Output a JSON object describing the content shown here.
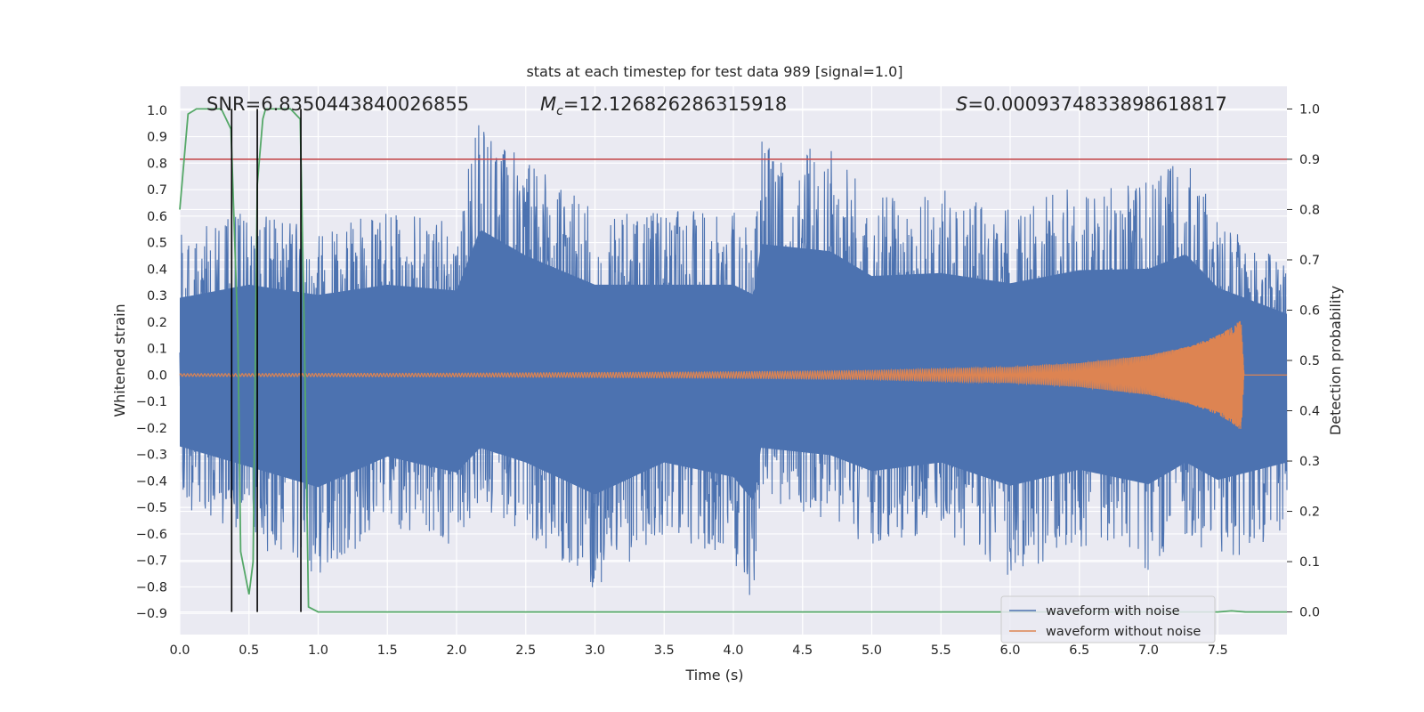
{
  "chart_data": {
    "type": "line",
    "title": "stats at each timestep for test data 989 [signal=1.0]",
    "xlabel": "Time (s)",
    "ylabel": "Whitened strain",
    "y2label": "Detection probability",
    "xlim": [
      0.0,
      8.0
    ],
    "ylim": [
      -0.98,
      1.09
    ],
    "y2lim": [
      -0.045,
      1.045
    ],
    "xticks": [
      "0.0",
      "0.5",
      "1.0",
      "1.5",
      "2.0",
      "2.5",
      "3.0",
      "3.5",
      "4.0",
      "4.5",
      "5.0",
      "5.5",
      "6.0",
      "6.5",
      "7.0",
      "7.5"
    ],
    "yticks": [
      "1.0",
      "0.9",
      "0.8",
      "0.7",
      "0.6",
      "0.5",
      "0.4",
      "0.3",
      "0.2",
      "0.1",
      "0.0",
      "−0.1",
      "−0.2",
      "−0.3",
      "−0.4",
      "−0.5",
      "−0.6",
      "−0.7",
      "−0.8",
      "−0.9"
    ],
    "y2ticks": [
      "1.0",
      "0.9",
      "0.8",
      "0.7",
      "0.6",
      "0.5",
      "0.4",
      "0.3",
      "0.2",
      "0.1",
      "0.0"
    ],
    "grid": true,
    "legend_position": "lower-right",
    "annotations": {
      "snr_label": "SNR=6.8350443840026855",
      "mc_prefix": "M",
      "mc_sub": "c",
      "mc_value": "=12.126826286315918",
      "s_prefix": "S",
      "s_value": "=0.0009374833898618817"
    },
    "threshold_y2": 0.9,
    "vertical_markers_x": [
      0.375,
      0.56,
      0.875
    ],
    "series": [
      {
        "name": "waveform with noise",
        "color": "#4c72b0",
        "style": "noise",
        "envelope_sample": [
          [
            0.0,
            0.53,
            -0.49
          ],
          [
            0.5,
            0.62,
            -0.63
          ],
          [
            1.0,
            0.55,
            -0.77
          ],
          [
            1.5,
            0.62,
            -0.56
          ],
          [
            2.0,
            0.58,
            -0.67
          ],
          [
            2.17,
            1.0,
            -0.5
          ],
          [
            2.5,
            0.82,
            -0.6
          ],
          [
            3.0,
            0.62,
            -0.82
          ],
          [
            3.5,
            0.62,
            -0.6
          ],
          [
            4.0,
            0.62,
            -0.7
          ],
          [
            4.15,
            0.55,
            -0.87
          ],
          [
            4.2,
            0.9,
            -0.5
          ],
          [
            4.7,
            0.85,
            -0.55
          ],
          [
            5.0,
            0.68,
            -0.66
          ],
          [
            5.5,
            0.7,
            -0.6
          ],
          [
            6.0,
            0.63,
            -0.76
          ],
          [
            6.5,
            0.72,
            -0.65
          ],
          [
            7.0,
            0.73,
            -0.75
          ],
          [
            7.27,
            0.83,
            -0.6
          ],
          [
            7.5,
            0.6,
            -0.72
          ],
          [
            8.0,
            0.42,
            -0.6
          ]
        ]
      },
      {
        "name": "waveform without noise",
        "color": "#dd8452",
        "style": "chirp",
        "amplitude_sample": [
          [
            0.0,
            0.005
          ],
          [
            2.0,
            0.007
          ],
          [
            4.0,
            0.012
          ],
          [
            5.0,
            0.017
          ],
          [
            6.0,
            0.03
          ],
          [
            6.5,
            0.045
          ],
          [
            7.0,
            0.075
          ],
          [
            7.3,
            0.11
          ],
          [
            7.5,
            0.15
          ],
          [
            7.6,
            0.18
          ],
          [
            7.67,
            0.21
          ],
          [
            7.69,
            0.0
          ],
          [
            8.0,
            0.0
          ]
        ]
      },
      {
        "name": "detection probability",
        "color": "#55a868",
        "axis": "right",
        "points": [
          [
            0.0,
            0.8
          ],
          [
            0.06,
            0.99
          ],
          [
            0.12,
            1.0
          ],
          [
            0.3,
            1.0
          ],
          [
            0.37,
            0.96
          ],
          [
            0.42,
            0.55
          ],
          [
            0.44,
            0.12
          ],
          [
            0.5,
            0.035
          ],
          [
            0.53,
            0.1
          ],
          [
            0.56,
            0.85
          ],
          [
            0.6,
            0.98
          ],
          [
            0.62,
            1.0
          ],
          [
            0.8,
            1.0
          ],
          [
            0.87,
            0.98
          ],
          [
            0.9,
            0.55
          ],
          [
            0.93,
            0.01
          ],
          [
            1.0,
            0.0
          ],
          [
            7.4,
            0.0
          ],
          [
            7.5,
            0.0
          ],
          [
            7.6,
            0.002
          ],
          [
            7.7,
            0.0
          ],
          [
            8.0,
            0.0
          ]
        ]
      }
    ]
  }
}
